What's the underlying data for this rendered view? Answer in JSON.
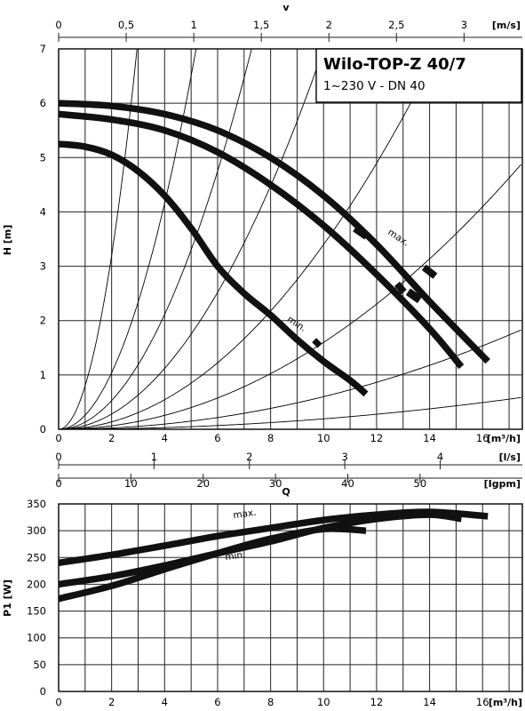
{
  "chart_data": [
    {
      "type": "line",
      "title": "Wilo-TOP-Z 40/7",
      "subtitle": "1~230 V - DN 40",
      "xlabel": "Q",
      "x_unit": "m³/h",
      "ylabel": "H [m]",
      "xlim": [
        0,
        17.5
      ],
      "ylim": [
        0,
        7
      ],
      "x_ticks": [
        "0",
        "2",
        "4",
        "6",
        "8",
        "10",
        "12",
        "14",
        "16"
      ],
      "y_ticks": [
        "0",
        "1",
        "2",
        "3",
        "4",
        "5",
        "6",
        "7"
      ],
      "top_axis": {
        "label": "v",
        "unit": "[m/s]",
        "ticks": [
          "0",
          "0,5",
          "1",
          "1,5",
          "2",
          "2,5",
          "3"
        ],
        "values": [
          0,
          0.5,
          1,
          1.5,
          2,
          2.5,
          3
        ]
      },
      "secondary_axes": [
        {
          "unit": "[l/s]",
          "ticks": [
            "0",
            "1",
            "2",
            "3",
            "4"
          ],
          "values": [
            0,
            1,
            2,
            3,
            4
          ]
        },
        {
          "unit": "[Igpm]",
          "ticks": [
            "0",
            "10",
            "20",
            "30",
            "40",
            "50"
          ],
          "values": [
            0,
            10,
            20,
            30,
            40,
            50
          ]
        }
      ],
      "annotations": [
        "max.",
        "min."
      ],
      "series": [
        {
          "name": "max.",
          "x": [
            0,
            2,
            4,
            6,
            8,
            10,
            12,
            14,
            16.2
          ],
          "y": [
            6.0,
            5.95,
            5.8,
            5.5,
            5.0,
            4.3,
            3.4,
            2.35,
            1.25
          ]
        },
        {
          "x": [
            0,
            2,
            4,
            6,
            8,
            10,
            12,
            14,
            15.2
          ],
          "y": [
            5.8,
            5.7,
            5.5,
            5.1,
            4.5,
            3.75,
            2.85,
            1.85,
            1.15
          ]
        },
        {
          "name": "min.",
          "x": [
            0,
            1,
            2,
            3,
            4,
            5,
            6,
            7,
            8,
            9,
            10,
            11,
            11.6
          ],
          "y": [
            5.25,
            5.2,
            5.05,
            4.75,
            4.3,
            3.7,
            3.0,
            2.5,
            2.1,
            1.65,
            1.25,
            0.9,
            0.65
          ]
        }
      ],
      "system_curves_k": [
        20,
        6.5,
        3.3,
        1.75,
        0.85,
        0.4,
        0.15,
        0.048
      ]
    },
    {
      "type": "line",
      "xlabel": "",
      "x_unit": "[m³/h]",
      "ylabel": "P1 [W]",
      "xlim": [
        0,
        17.5
      ],
      "ylim": [
        0,
        350
      ],
      "x_ticks": [
        "0",
        "2",
        "4",
        "6",
        "8",
        "10",
        "12",
        "14",
        "16"
      ],
      "y_ticks": [
        "0",
        "50",
        "100",
        "150",
        "200",
        "250",
        "300",
        "350"
      ],
      "annotations": [
        "max.",
        "min."
      ],
      "series": [
        {
          "name": "max.",
          "x": [
            0,
            2,
            4,
            6,
            8,
            10,
            12,
            14,
            16.2
          ],
          "y": [
            240,
            255,
            272,
            290,
            305,
            320,
            330,
            335,
            327
          ]
        },
        {
          "x": [
            0,
            2,
            4,
            6,
            8,
            10,
            12,
            14,
            15.2
          ],
          "y": [
            200,
            215,
            235,
            258,
            280,
            305,
            322,
            330,
            322
          ]
        },
        {
          "name": "min.",
          "x": [
            0,
            2,
            4,
            6,
            8,
            10,
            11.6
          ],
          "y": [
            173,
            197,
            228,
            258,
            285,
            303,
            300
          ]
        }
      ]
    }
  ]
}
